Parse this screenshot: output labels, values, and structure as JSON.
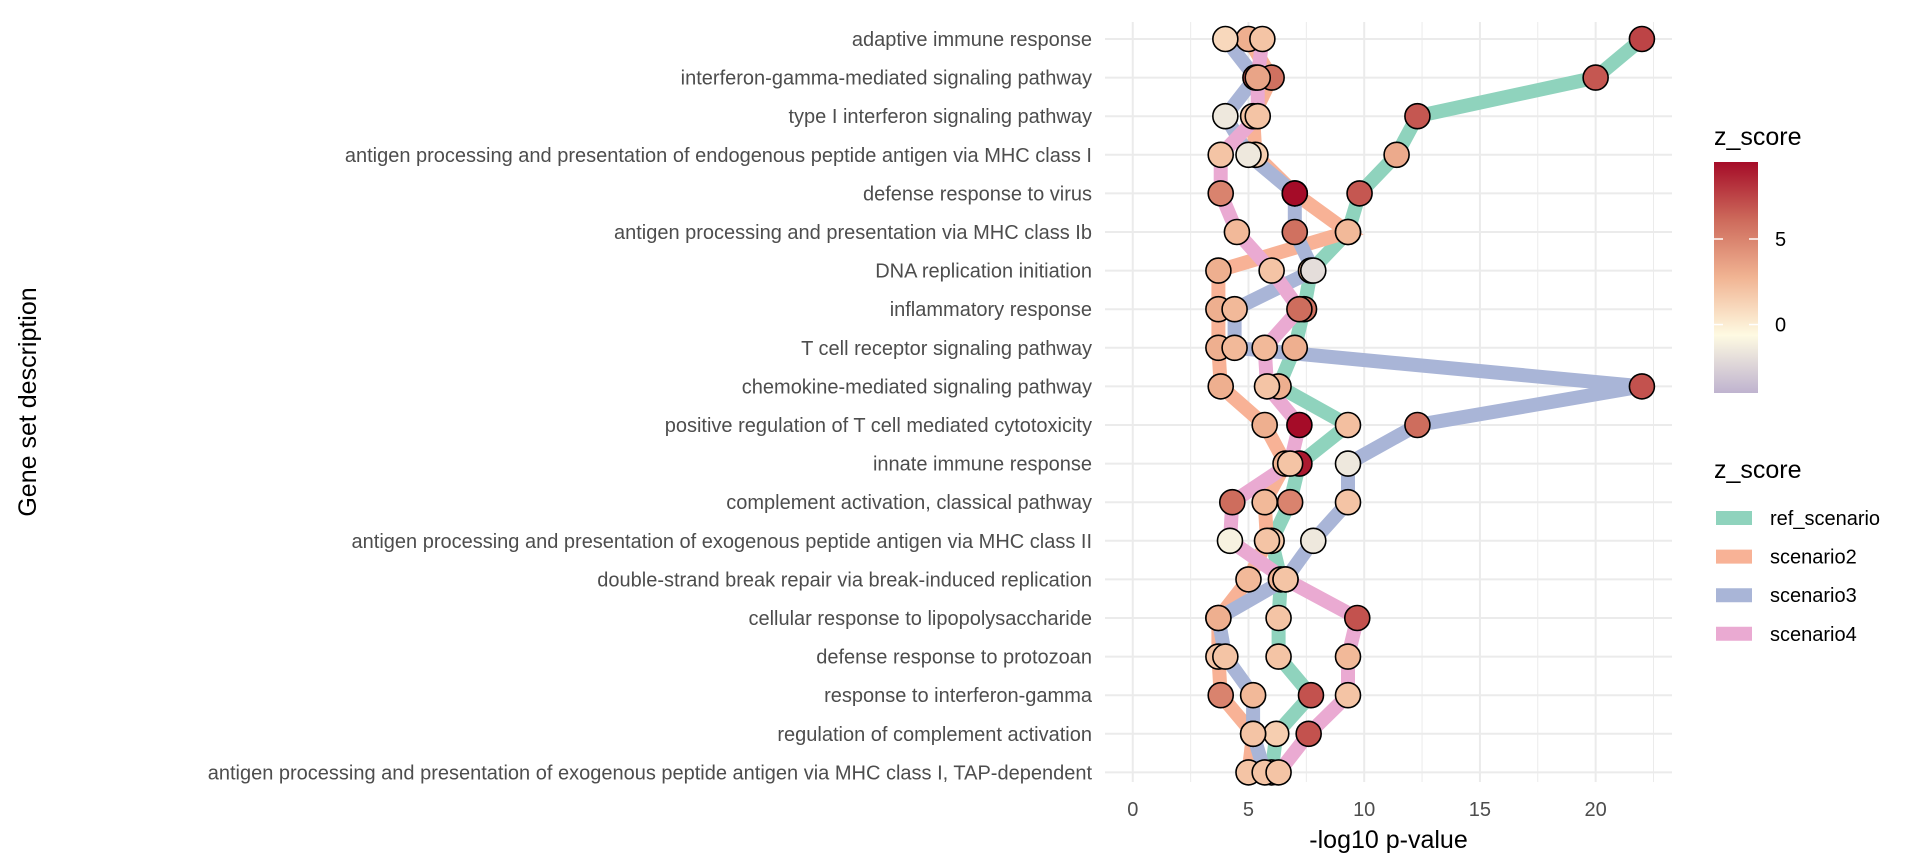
{
  "chart_data": {
    "type": "line",
    "title": "",
    "xlabel": "-log10 p-value",
    "ylabel": "Gene set description",
    "xlim": [
      -1.2,
      23.3
    ],
    "xticks": [
      0,
      5,
      10,
      15,
      20
    ],
    "grid": true,
    "legend_position": "right",
    "categories": [
      "adaptive immune response",
      "interferon-gamma-mediated signaling pathway",
      "type I interferon signaling pathway",
      "antigen processing and presentation of endogenous peptide antigen via MHC class I",
      "defense response to virus",
      "antigen processing and presentation via MHC class Ib",
      "DNA replication initiation",
      "inflammatory response",
      "T cell receptor signaling pathway",
      "chemokine-mediated signaling pathway",
      "positive regulation of T cell mediated cytotoxicity",
      "innate immune response",
      "complement activation, classical pathway",
      "antigen processing and presentation of exogenous peptide antigen via MHC class II",
      "double-strand break repair via break-induced replication",
      "cellular response to lipopolysaccharide",
      "defense response to protozoan",
      "response to interferon-gamma",
      "regulation of complement activation",
      "antigen processing and presentation of exogenous peptide antigen via MHC class I, TAP-dependent"
    ],
    "series": [
      {
        "name": "ref_scenario",
        "color": "#8fd3bd",
        "values": [
          22.0,
          20.0,
          12.3,
          11.4,
          9.8,
          9.3,
          7.7,
          7.4,
          7.0,
          6.3,
          9.3,
          7.2,
          6.8,
          6.0,
          6.4,
          6.3,
          6.3,
          7.7,
          6.2,
          6.0
        ],
        "z_scores": [
          7.5,
          6.8,
          6.8,
          3.2,
          6.8,
          2.5,
          2.5,
          5.8,
          3.0,
          3.0,
          2.2,
          9.0,
          5.0,
          1.8,
          2.8,
          2.0,
          2.0,
          7.0,
          1.5,
          2.0
        ]
      },
      {
        "name": "scenario2",
        "color": "#f8b296",
        "values": [
          5.0,
          6.0,
          5.2,
          5.3,
          7.0,
          9.3,
          3.7,
          3.7,
          3.7,
          3.8,
          5.7,
          6.6,
          5.7,
          5.8,
          5.0,
          3.7,
          3.7,
          3.8,
          5.2,
          5.0
        ],
        "z_scores": [
          3.0,
          5.8,
          2.0,
          1.5,
          9.0,
          2.5,
          3.0,
          3.0,
          3.0,
          3.0,
          3.0,
          2.8,
          2.5,
          2.0,
          2.5,
          2.0,
          2.0,
          5.0,
          2.0,
          2.0
        ]
      },
      {
        "name": "scenario3",
        "color": "#a9b5d7",
        "values": [
          4.0,
          5.3,
          4.0,
          5.0,
          7.0,
          7.0,
          7.8,
          4.4,
          4.4,
          22.0,
          12.3,
          9.3,
          9.3,
          7.8,
          6.6,
          3.7,
          4.0,
          5.2,
          5.2,
          5.7
        ],
        "z_scores": [
          1.0,
          7.0,
          -1.5,
          -1.5,
          10.0,
          5.8,
          -2.0,
          2.5,
          2.5,
          7.0,
          6.0,
          -1.5,
          2.0,
          -1.5,
          -1.0,
          3.0,
          2.0,
          2.5,
          2.0,
          2.0
        ]
      },
      {
        "name": "scenario4",
        "color": "#eaaad2",
        "values": [
          5.6,
          5.4,
          5.4,
          3.8,
          3.8,
          4.5,
          6.0,
          7.2,
          5.7,
          5.8,
          7.2,
          6.8,
          4.3,
          4.2,
          6.6,
          9.7,
          9.3,
          9.3,
          7.6,
          6.3
        ],
        "z_scores": [
          2.0,
          3.5,
          2.0,
          2.0,
          5.0,
          2.5,
          2.0,
          6.0,
          2.5,
          2.0,
          9.5,
          2.0,
          6.0,
          -1.0,
          2.0,
          7.0,
          2.5,
          2.0,
          7.0,
          2.0
        ]
      }
    ],
    "color_legend": {
      "title": "z_score",
      "labels": [
        "5",
        "0"
      ],
      "label_values": [
        5,
        0
      ],
      "range": [
        -4,
        9.5
      ],
      "gradient_stops": [
        "#bfb3cf",
        "#fefae2",
        "#f1b493",
        "#cd6a5b",
        "#a50c28"
      ]
    },
    "line_legend": {
      "title": "z_score",
      "items": [
        "ref_scenario",
        "scenario2",
        "scenario3",
        "scenario4"
      ]
    }
  }
}
